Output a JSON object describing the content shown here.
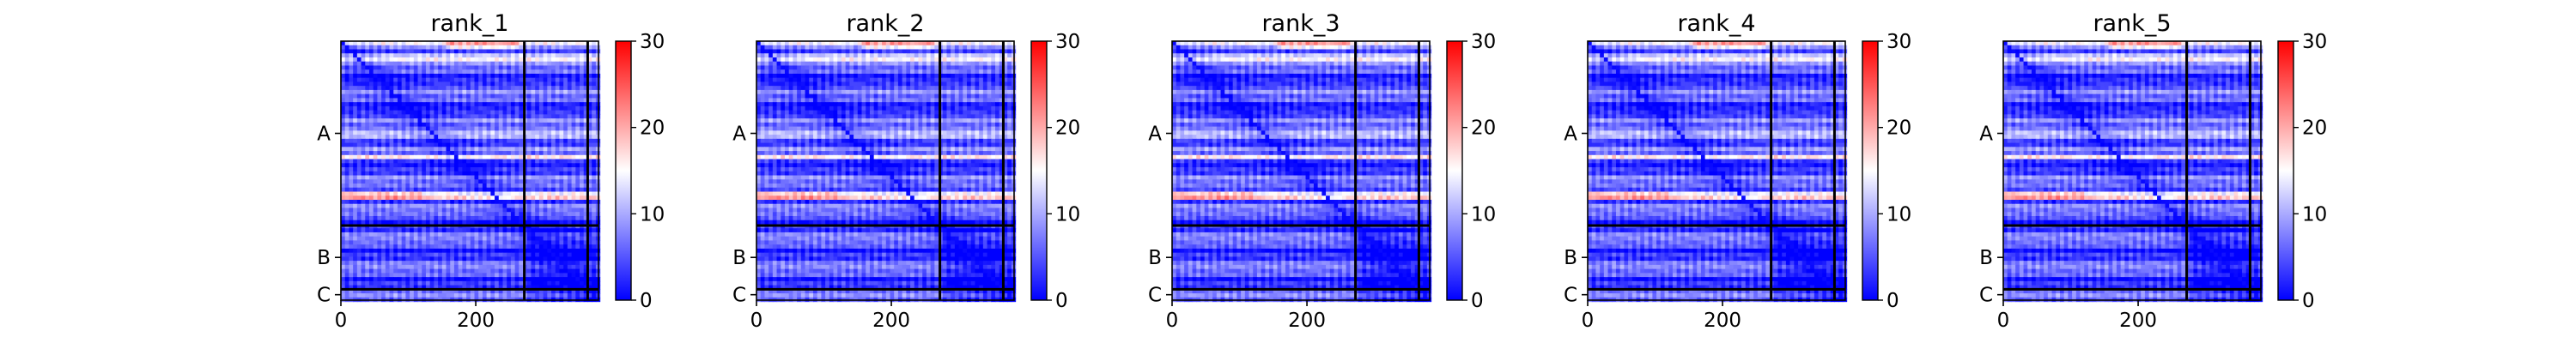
{
  "chart_data": [
    {
      "type": "heatmap",
      "title": "rank_1",
      "xlabel": "",
      "ylabel": "",
      "x_ticks": [
        {
          "value": 0,
          "label": "0"
        },
        {
          "value": 200,
          "label": "200"
        }
      ],
      "y_chain_labels": [
        {
          "label": "A",
          "range": [
            0,
            272
          ]
        },
        {
          "label": "B",
          "range": [
            272,
            366
          ]
        },
        {
          "label": "C",
          "range": [
            366,
            382
          ]
        }
      ],
      "chain_boundaries": [
        272,
        366
      ],
      "xlim": [
        0,
        382
      ],
      "ylim": [
        0,
        382
      ],
      "colorbar": {
        "min": 0,
        "max": 30,
        "ticks": [
          0,
          10,
          20,
          30
        ],
        "colormap": "bwr"
      },
      "value_range_observed": [
        0,
        25
      ],
      "grid": false
    },
    {
      "type": "heatmap",
      "title": "rank_2",
      "xlabel": "",
      "ylabel": "",
      "x_ticks": [
        {
          "value": 0,
          "label": "0"
        },
        {
          "value": 200,
          "label": "200"
        }
      ],
      "y_chain_labels": [
        {
          "label": "A",
          "range": [
            0,
            272
          ]
        },
        {
          "label": "B",
          "range": [
            272,
            366
          ]
        },
        {
          "label": "C",
          "range": [
            366,
            382
          ]
        }
      ],
      "chain_boundaries": [
        272,
        366
      ],
      "xlim": [
        0,
        382
      ],
      "ylim": [
        0,
        382
      ],
      "colorbar": {
        "min": 0,
        "max": 30,
        "ticks": [
          0,
          10,
          20,
          30
        ],
        "colormap": "bwr"
      },
      "value_range_observed": [
        0,
        25
      ],
      "grid": false
    },
    {
      "type": "heatmap",
      "title": "rank_3",
      "xlabel": "",
      "ylabel": "",
      "x_ticks": [
        {
          "value": 0,
          "label": "0"
        },
        {
          "value": 200,
          "label": "200"
        }
      ],
      "y_chain_labels": [
        {
          "label": "A",
          "range": [
            0,
            272
          ]
        },
        {
          "label": "B",
          "range": [
            272,
            366
          ]
        },
        {
          "label": "C",
          "range": [
            366,
            382
          ]
        }
      ],
      "chain_boundaries": [
        272,
        366
      ],
      "xlim": [
        0,
        382
      ],
      "ylim": [
        0,
        382
      ],
      "colorbar": {
        "min": 0,
        "max": 30,
        "ticks": [
          0,
          10,
          20,
          30
        ],
        "colormap": "bwr"
      },
      "value_range_observed": [
        0,
        25
      ],
      "grid": false
    },
    {
      "type": "heatmap",
      "title": "rank_4",
      "xlabel": "",
      "ylabel": "",
      "x_ticks": [
        {
          "value": 0,
          "label": "0"
        },
        {
          "value": 200,
          "label": "200"
        }
      ],
      "y_chain_labels": [
        {
          "label": "A",
          "range": [
            0,
            272
          ]
        },
        {
          "label": "B",
          "range": [
            272,
            366
          ]
        },
        {
          "label": "C",
          "range": [
            366,
            382
          ]
        }
      ],
      "chain_boundaries": [
        272,
        366
      ],
      "xlim": [
        0,
        382
      ],
      "ylim": [
        0,
        382
      ],
      "colorbar": {
        "min": 0,
        "max": 30,
        "ticks": [
          0,
          10,
          20,
          30
        ],
        "colormap": "bwr"
      },
      "value_range_observed": [
        0,
        25
      ],
      "grid": false
    },
    {
      "type": "heatmap",
      "title": "rank_5",
      "xlabel": "",
      "ylabel": "",
      "x_ticks": [
        {
          "value": 0,
          "label": "0"
        },
        {
          "value": 200,
          "label": "200"
        }
      ],
      "y_chain_labels": [
        {
          "label": "A",
          "range": [
            0,
            272
          ]
        },
        {
          "label": "B",
          "range": [
            272,
            366
          ]
        },
        {
          "label": "C",
          "range": [
            366,
            382
          ]
        }
      ],
      "chain_boundaries": [
        272,
        366
      ],
      "xlim": [
        0,
        382
      ],
      "ylim": [
        0,
        382
      ],
      "colorbar": {
        "min": 0,
        "max": 30,
        "ticks": [
          0,
          10,
          20,
          30
        ],
        "colormap": "bwr"
      },
      "value_range_observed": [
        0,
        25
      ],
      "grid": false
    }
  ]
}
